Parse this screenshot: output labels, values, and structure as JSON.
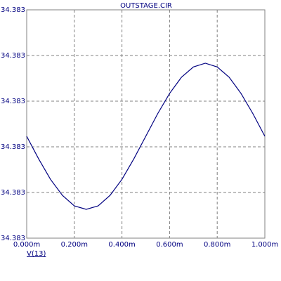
{
  "chart_data": {
    "type": "line",
    "title": "OUTSTAGE.CIR",
    "x": [
      0,
      5e-05,
      0.0001,
      0.00015,
      0.0002,
      0.00025,
      0.0003,
      0.00035,
      0.0004,
      0.00045,
      0.0005,
      0.00055,
      0.0006,
      0.00065,
      0.0007,
      0.00075,
      0.0008,
      0.00085,
      0.0009,
      0.00095,
      0.001
    ],
    "series": [
      {
        "name": "V(13)",
        "color": "#000080",
        "values": [
          34.382957,
          34.382878,
          34.382806,
          34.38275,
          34.382713,
          34.382701,
          34.382713,
          34.38275,
          34.382806,
          34.382878,
          34.382957,
          34.383036,
          34.383107,
          34.383164,
          34.3832,
          34.383213,
          34.3832,
          34.383164,
          34.383107,
          34.383036,
          34.382957
        ]
      }
    ],
    "xlim": [
      0,
      0.001
    ],
    "xticks": [
      {
        "value": 0,
        "label": "0.000m"
      },
      {
        "value": 0.0002,
        "label": "0.200m"
      },
      {
        "value": 0.0004,
        "label": "0.400m"
      },
      {
        "value": 0.0006,
        "label": "0.600m"
      },
      {
        "value": 0.0008,
        "label": "0.800m"
      },
      {
        "value": 0.001,
        "label": "1.000m"
      }
    ],
    "ylim": [
      34.3826,
      34.3834
    ],
    "yticks": [
      {
        "value": 34.3826,
        "label": "34.383"
      },
      {
        "value": 34.38276,
        "label": "34.383"
      },
      {
        "value": 34.38292,
        "label": "34.383"
      },
      {
        "value": 34.38308,
        "label": "34.383"
      },
      {
        "value": 34.38324,
        "label": "34.383"
      },
      {
        "value": 34.3834,
        "label": "34.383"
      }
    ],
    "grid": true
  }
}
